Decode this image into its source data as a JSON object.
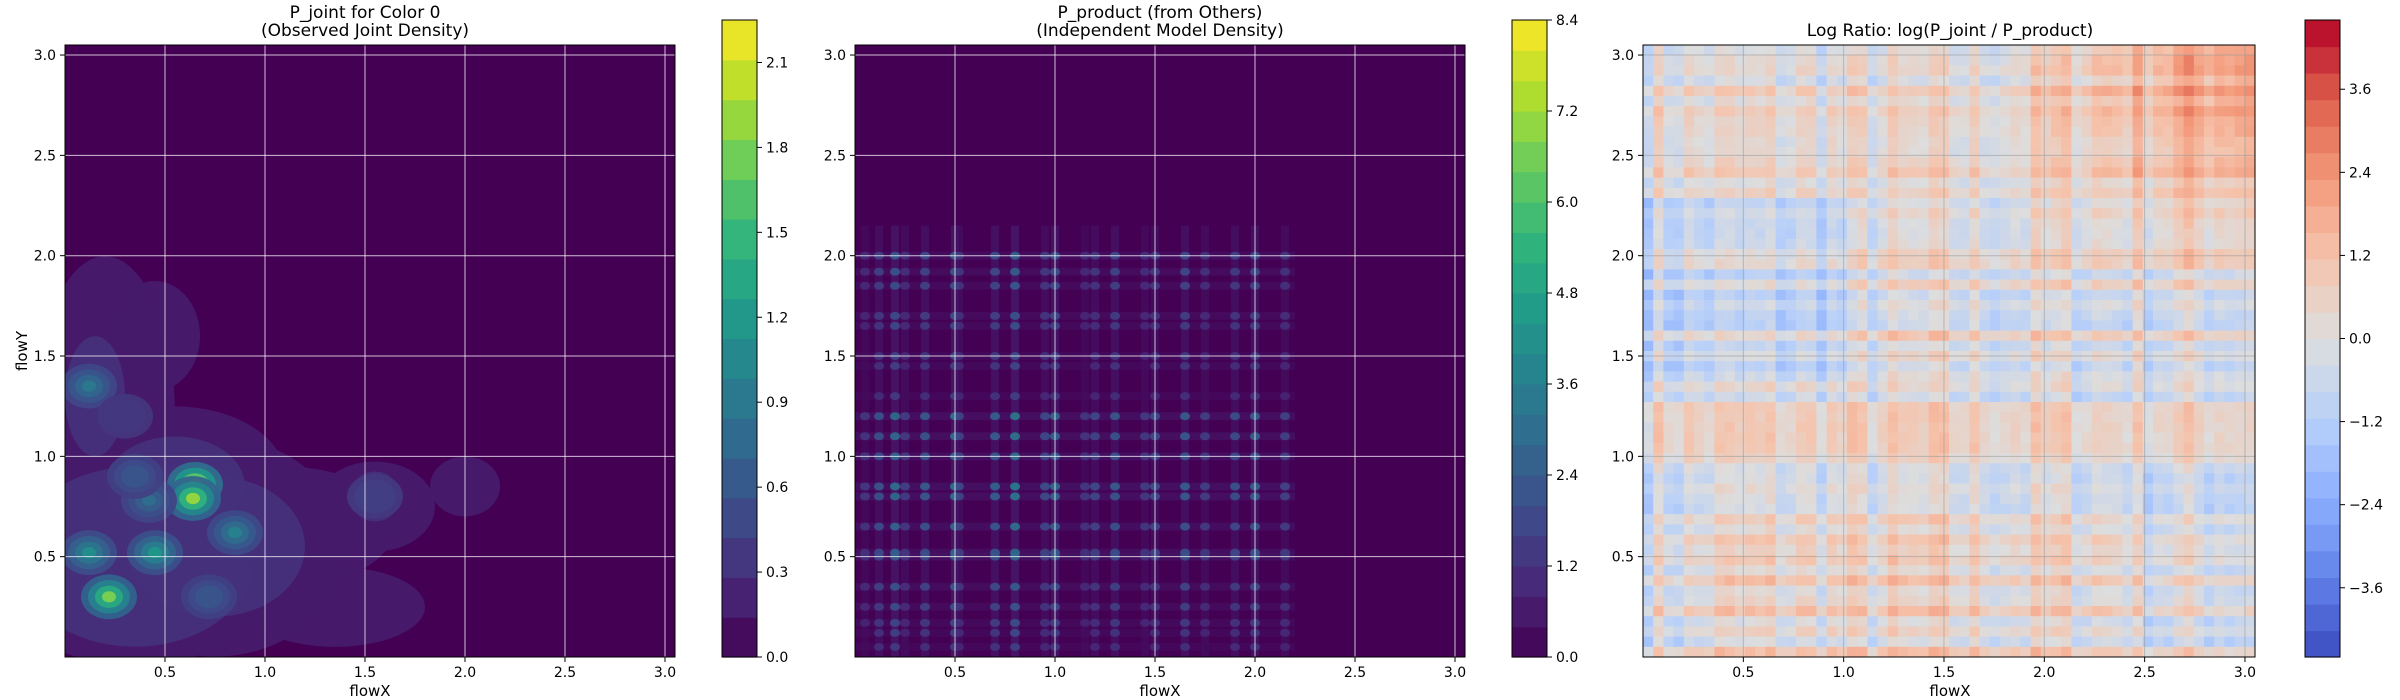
{
  "chart_data": [
    {
      "type": "heatmap",
      "title_line1": "P_joint for Color 0",
      "title_line2": "(Observed Joint Density)",
      "xlabel": "flowX",
      "ylabel": "flowY",
      "xlim": [
        0.0,
        3.05
      ],
      "ylim": [
        0.0,
        3.05
      ],
      "xticks": [
        "0.5",
        "1.0",
        "1.5",
        "2.0",
        "2.5",
        "3.0"
      ],
      "yticks": [
        "0.5",
        "1.0",
        "1.5",
        "2.0",
        "2.5",
        "3.0"
      ],
      "grid": true,
      "colormap": "viridis",
      "colorbar": {
        "min": 0.0,
        "max": 2.25,
        "ticks": [
          "0.0",
          "0.3",
          "0.6",
          "0.9",
          "1.2",
          "1.5",
          "1.8",
          "2.1"
        ]
      },
      "hotspots": [
        {
          "x": 0.65,
          "y": 0.86,
          "v": 2.2
        },
        {
          "x": 0.64,
          "y": 0.79,
          "v": 1.9
        },
        {
          "x": 0.22,
          "y": 0.3,
          "v": 1.8
        },
        {
          "x": 0.45,
          "y": 0.52,
          "v": 1.2
        },
        {
          "x": 0.12,
          "y": 0.52,
          "v": 1.1
        },
        {
          "x": 0.85,
          "y": 0.62,
          "v": 1.0
        },
        {
          "x": 0.12,
          "y": 1.35,
          "v": 0.9
        },
        {
          "x": 0.42,
          "y": 0.78,
          "v": 0.8
        },
        {
          "x": 0.72,
          "y": 0.3,
          "v": 0.7
        },
        {
          "x": 0.35,
          "y": 0.9,
          "v": 0.7
        },
        {
          "x": 1.55,
          "y": 0.8,
          "v": 0.5
        },
        {
          "x": 0.3,
          "y": 1.2,
          "v": 0.4
        }
      ]
    },
    {
      "type": "heatmap",
      "title_line1": "P_product (from Others)",
      "title_line2": "(Independent Model Density)",
      "xlabel": "flowX",
      "ylabel": "",
      "xlim": [
        0.0,
        3.05
      ],
      "ylim": [
        0.0,
        3.05
      ],
      "xticks": [
        "0.5",
        "1.0",
        "1.5",
        "2.0",
        "2.5",
        "3.0"
      ],
      "yticks": [
        "0.5",
        "1.0",
        "1.5",
        "2.0",
        "2.5",
        "3.0"
      ],
      "grid": true,
      "colormap": "viridis",
      "colorbar": {
        "min": 0.0,
        "max": 8.4,
        "ticks": [
          "0.0",
          "1.2",
          "2.4",
          "3.6",
          "4.8",
          "6.0",
          "7.2",
          "8.4"
        ]
      },
      "x_marginal_peaks": [
        0.05,
        0.12,
        0.2,
        0.25,
        0.35,
        0.5,
        0.52,
        0.7,
        0.8,
        0.95,
        1.0,
        1.15,
        1.2,
        1.3,
        1.45,
        1.5,
        1.65,
        1.75,
        1.9,
        2.0,
        2.15
      ],
      "y_marginal_peaks": [
        0.05,
        0.12,
        0.17,
        0.25,
        0.35,
        0.5,
        0.52,
        0.65,
        0.8,
        0.85,
        1.0,
        1.1,
        1.2,
        1.3,
        1.45,
        1.5,
        1.65,
        1.7,
        1.85,
        1.92,
        2.0
      ]
    },
    {
      "type": "heatmap",
      "title_line1": "Log Ratio: log(P_joint / P_product)",
      "title_line2": "",
      "xlabel": "flowX",
      "ylabel": "",
      "xlim": [
        0.0,
        3.05
      ],
      "ylim": [
        0.0,
        3.05
      ],
      "xticks": [
        "0.5",
        "1.0",
        "1.5",
        "2.0",
        "2.5",
        "3.0"
      ],
      "yticks": [
        "0.5",
        "1.0",
        "1.5",
        "2.0",
        "2.5",
        "3.0"
      ],
      "grid": true,
      "colormap": "coolwarm",
      "colorbar": {
        "min": -4.6,
        "max": 4.6,
        "ticks": [
          "−3.6",
          "−2.4",
          "−1.2",
          "0.0",
          "1.2",
          "2.4",
          "3.6"
        ],
        "tick_values": [
          -3.6,
          -2.4,
          -1.2,
          0.0,
          1.2,
          2.4,
          3.6
        ]
      }
    }
  ]
}
